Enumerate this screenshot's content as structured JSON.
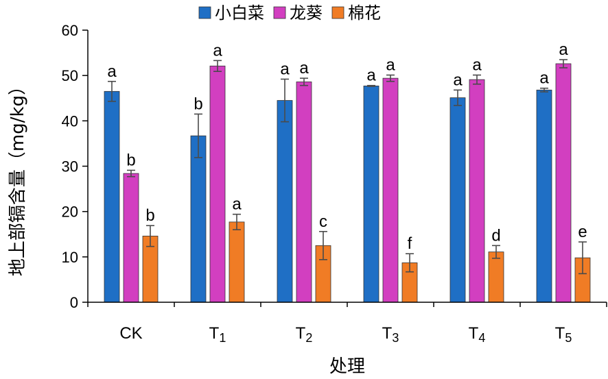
{
  "chart_data": {
    "type": "bar",
    "xlabel": "处理",
    "ylabel": "地上部镉含量（mg/kg）",
    "ylim": [
      0,
      60
    ],
    "yticks": [
      0,
      10,
      20,
      30,
      40,
      50,
      60
    ],
    "legend_position": "top",
    "categories": [
      {
        "main": "CK",
        "sub": ""
      },
      {
        "main": "T",
        "sub": "1"
      },
      {
        "main": "T",
        "sub": "2"
      },
      {
        "main": "T",
        "sub": "3"
      },
      {
        "main": "T",
        "sub": "4"
      },
      {
        "main": "T",
        "sub": "5"
      }
    ],
    "series": [
      {
        "name": "小白菜",
        "color": "#1f6fc5",
        "values": [
          46.5,
          36.7,
          44.5,
          47.7,
          45.1,
          46.8
        ],
        "errors": [
          2.2,
          4.8,
          4.7,
          0.1,
          1.7,
          0.4
        ],
        "sig": [
          "a",
          "b",
          "a",
          "a",
          "a",
          "a"
        ]
      },
      {
        "name": "龙葵",
        "color": "#d23fc0",
        "values": [
          28.4,
          52.1,
          48.6,
          49.4,
          49.1,
          52.6
        ],
        "errors": [
          0.7,
          1.2,
          0.8,
          0.7,
          1.0,
          0.9
        ],
        "sig": [
          "b",
          "a",
          "a",
          "a",
          "a",
          "a"
        ]
      },
      {
        "name": "棉花",
        "color": "#f07c25",
        "values": [
          14.6,
          17.7,
          12.5,
          8.7,
          11.1,
          9.8
        ],
        "errors": [
          2.3,
          1.7,
          3.1,
          2.0,
          1.4,
          3.5
        ],
        "sig": [
          "b",
          "a",
          "c",
          "f",
          "d",
          "e"
        ]
      }
    ]
  }
}
